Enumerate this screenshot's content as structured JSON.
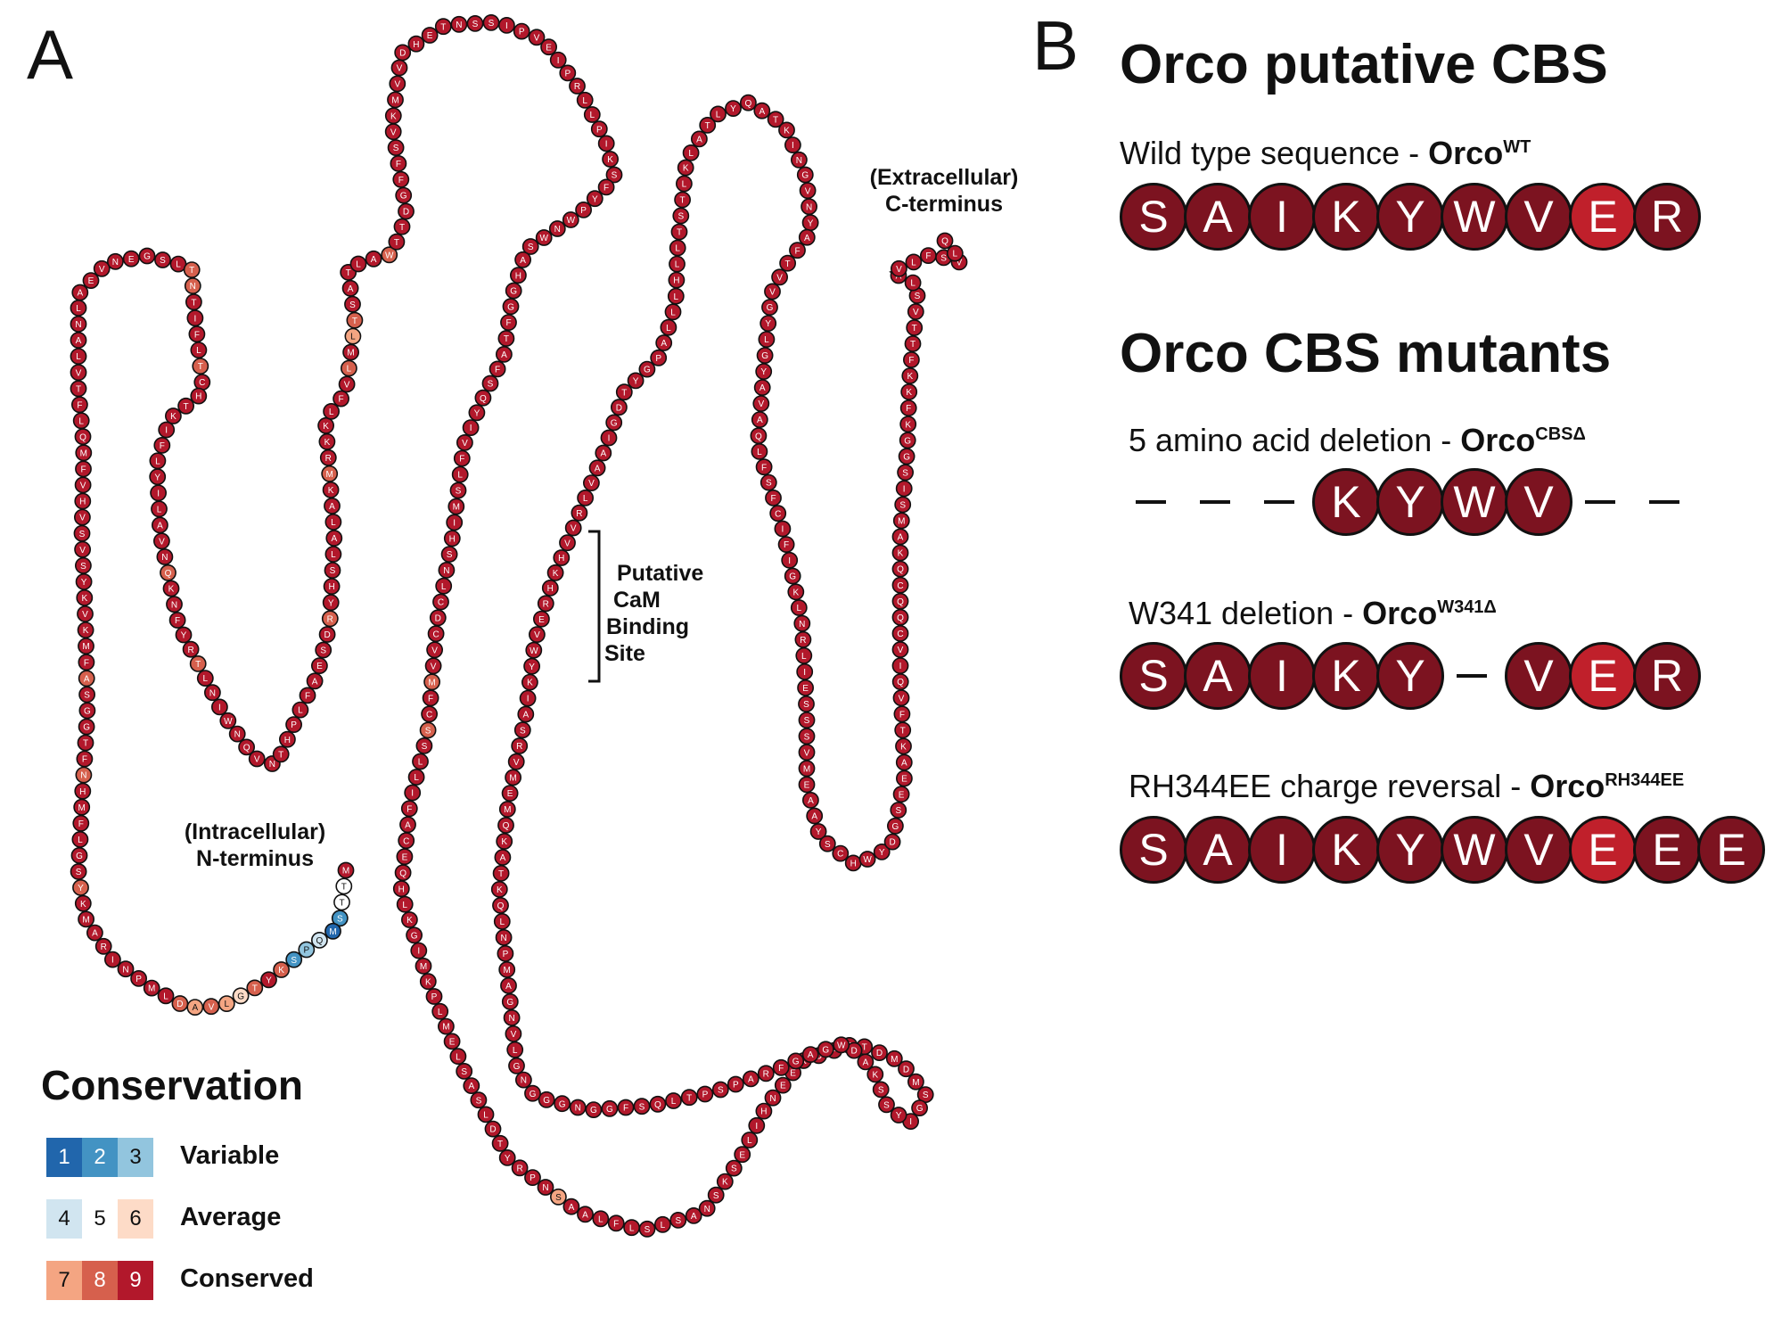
{
  "panel_a": {
    "letter": "A",
    "n_terminus_label": [
      "(Intracellular)",
      "N-terminus"
    ],
    "c_terminus_label": [
      "(Extracellular)",
      "C-terminus"
    ],
    "cbs_label": [
      "Putative",
      "CaM",
      "Binding",
      "Site"
    ],
    "colors": {
      "1": "#2166ac",
      "2": "#4393c3",
      "3": "#92c5de",
      "4": "#d1e5f0",
      "5": "#ffffff",
      "6": "#fddbc7",
      "7": "#f4a582",
      "8": "#d6604d",
      "9": "#b2182b"
    },
    "residues": "MTTSMQPSKYTGLVADLMPNIRAMKYSGLFMHNFTGGSAFMKVKYSVSVHVFMQLFTVLANLAEVNEGSLTNTIFLTCHTKIFLYILAVNQKNFYRTLNIWNQVNTHPLFAESDRYHSLALAKMRKKLFVLMLTSATLAWTTDGFFSVKMVVDHETNSSIPVEIPRLLPIKSFYPWNWSAHGGFTAFSQYIVFLSMIHSNLCDCVVMFCSSLLIFACEQHLKGIMKPLMELSASLDTYRPNSAALFLSLSANSKSELIHNEEKDPGTDMDMSGIYSSKADWGAGFRAPSPTLQSFGGNGGGNGLVNGAMPNLQKTAKQMEMVRSAIKYWVERHKHVVRLVAAIGDTYGPALLLHLLTSTLKLATLYQATKINGVNYAFTVVGYLGYAVAQLFSFCIFIGKLNRLIESSSVMEAAYSCHWYDGSEEAKTFVQIVCQQCQKAMSISGGKFKKFTTVSLAVLFSVLQ",
    "scores": "955214328986787899999999989999998999998999999999999999999999999999999988999989999999999999899999899999999999999999899999999899999989789999989999999999999999999999999999999999999999999999999999999999999999998998999999999999999999999999999999979999999999999999999999999999999999999999999999999999999999999999999999999999999999999999999999999999999999999999999999999999999999999999999999999999999999999999999999999999999999999999999999999999999999999999999999999999999999999999999"
  },
  "panel_b": {
    "letter": "B",
    "wt_title": "Orco putative CBS",
    "wt_caption": "Wild type sequence - ",
    "wt_name": "Orco",
    "wt_sup": "WT",
    "wt_seq": [
      "S",
      "A",
      "I",
      "K",
      "Y",
      "W",
      "V",
      "E",
      "R"
    ],
    "mutants_title": "Orco CBS mutants",
    "m1_caption": "5 amino acid deletion - ",
    "m1_name": "Orco",
    "m1_sup": "CBSΔ",
    "m1_seq": [
      "K",
      "Y",
      "W",
      "V"
    ],
    "m2_caption": "W341 deletion - ",
    "m2_name": "Orco",
    "m2_sup": "W341Δ",
    "m2_seq": [
      "S",
      "A",
      "I",
      "K",
      "Y",
      "V",
      "E",
      "R"
    ],
    "m3_caption": "RH344EE charge reversal - ",
    "m3_name": "Orco",
    "m3_sup": "RH344EE",
    "m3_seq": [
      "S",
      "A",
      "I",
      "K",
      "Y",
      "W",
      "V",
      "E",
      "E",
      "E"
    ]
  },
  "legend": {
    "title": "Conservation",
    "rows": [
      {
        "label": "Variable",
        "cells": [
          "1",
          "2",
          "3"
        ],
        "colors": [
          "#2166ac",
          "#4393c3",
          "#92c5de"
        ]
      },
      {
        "label": "Average",
        "cells": [
          "4",
          "5",
          "6"
        ],
        "colors": [
          "#d1e5f0",
          "#ffffff",
          "#fddbc7"
        ]
      },
      {
        "label": "Conserved",
        "cells": [
          "7",
          "8",
          "9"
        ],
        "colors": [
          "#f4a582",
          "#d6604d",
          "#b2182b"
        ]
      }
    ]
  }
}
